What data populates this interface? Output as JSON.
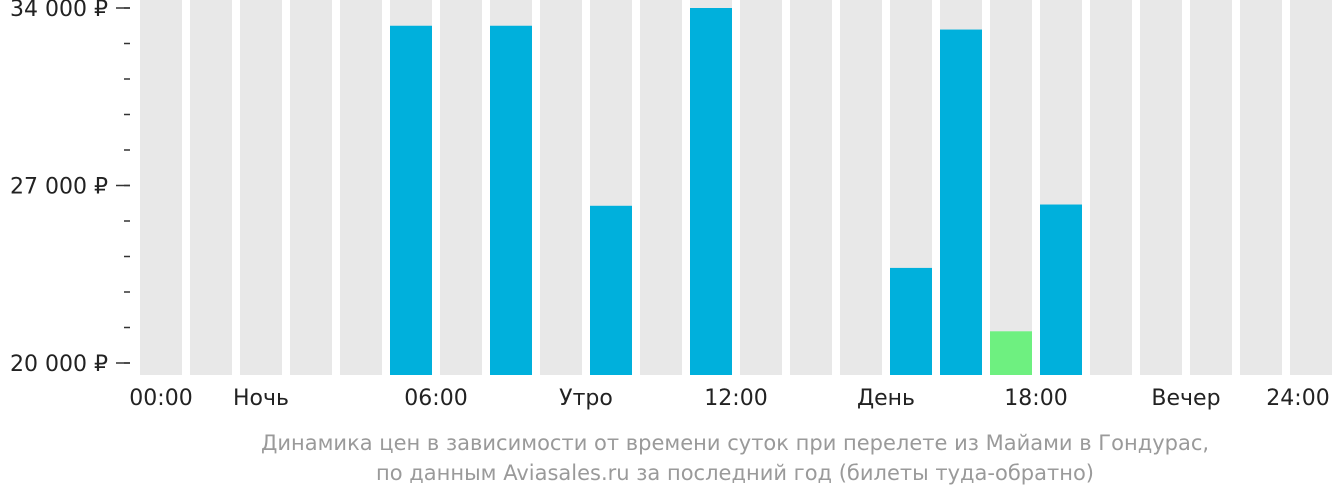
{
  "chart_data": {
    "type": "bar",
    "categories": [
      "00:00",
      "01:00",
      "02:00",
      "03:00",
      "04:00",
      "05:00",
      "06:00",
      "07:00",
      "08:00",
      "09:00",
      "10:00",
      "11:00",
      "12:00",
      "13:00",
      "14:00",
      "15:00",
      "16:00",
      "17:00",
      "18:00",
      "19:00",
      "20:00",
      "21:00",
      "22:00",
      "23:00"
    ],
    "values": [
      null,
      null,
      null,
      null,
      null,
      33300,
      null,
      33300,
      null,
      26200,
      null,
      34000,
      null,
      null,
      null,
      23750,
      33150,
      21250,
      26250,
      null,
      null,
      null,
      null,
      null
    ],
    "highlight_index": 17,
    "ylim": [
      20000,
      34000
    ],
    "y_tick_labels": [
      {
        "value": 20000,
        "label": "20 000 ₽"
      },
      {
        "value": 27000,
        "label": "27 000 ₽"
      },
      {
        "value": 34000,
        "label": "34 000 ₽"
      }
    ],
    "minor_tick_step": 1400,
    "x_labels": [
      {
        "at": 0,
        "label": "00:00"
      },
      {
        "at": 2.5,
        "label": "Ночь"
      },
      {
        "at": 6,
        "label": "06:00"
      },
      {
        "at": 9,
        "label": "Утро"
      },
      {
        "at": 12,
        "label": "12:00"
      },
      {
        "at": 15,
        "label": "День"
      },
      {
        "at": 18,
        "label": "18:00"
      },
      {
        "at": 21,
        "label": "Вечер"
      },
      {
        "at": 24,
        "label": "24:00"
      }
    ],
    "caption_line1": "Динамика цен в зависимости от времени суток при перелете из Майами в Гондурас,",
    "caption_line2": "по данным Aviasales.ru за последний год (билеты туда-обратно)",
    "colors": {
      "background_bar": "#e8e8e8",
      "bar": "#00b0dc",
      "highlight_bar": "#6ef080",
      "axis_text": "#222222",
      "caption_text": "#9a9a9a"
    }
  }
}
